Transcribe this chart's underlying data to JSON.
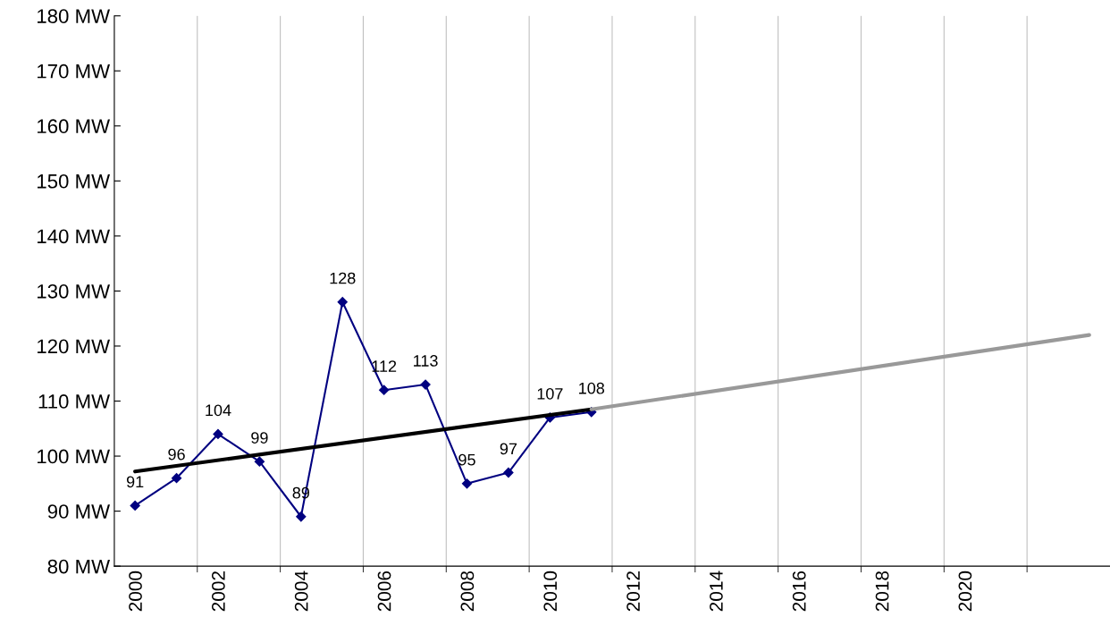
{
  "chart_data": {
    "type": "line",
    "xlim": [
      1999.5,
      2023.5
    ],
    "xticks": [
      2000,
      2002,
      2004,
      2006,
      2008,
      2010,
      2012,
      2014,
      2016,
      2018,
      2020,
      {
        "value": 2001.5,
        "label": null
      },
      {
        "value": 2003.5,
        "label": null
      },
      {
        "value": 2005.5,
        "label": null
      },
      {
        "value": 2007.5,
        "label": null
      },
      {
        "value": 2009.5,
        "label": null
      },
      {
        "value": 2011.5,
        "label": null
      },
      {
        "value": 2013.5,
        "label": null
      },
      {
        "value": 2015.5,
        "label": null
      },
      {
        "value": 2017.5,
        "label": null
      },
      {
        "value": 2019.5,
        "label": null
      },
      {
        "value": 2021.5,
        "label": null
      }
    ],
    "ylim": [
      80,
      180
    ],
    "yticks": [
      {
        "value": 80,
        "label": "80 MW"
      },
      {
        "value": 90,
        "label": "90 MW"
      },
      {
        "value": 100,
        "label": "100 MW"
      },
      {
        "value": 110,
        "label": "110 MW"
      },
      {
        "value": 120,
        "label": "120 MW"
      },
      {
        "value": 130,
        "label": "130 MW"
      },
      {
        "value": 140,
        "label": "140 MW"
      },
      {
        "value": 150,
        "label": "150 MW"
      },
      {
        "value": 160,
        "label": "160 MW"
      },
      {
        "value": 170,
        "label": "170 MW"
      },
      {
        "value": 180,
        "label": "180 MW"
      }
    ],
    "grid": "x",
    "series": [
      {
        "color": "#000080",
        "marker": "diamond",
        "x": [
          2000,
          2001,
          2002,
          2003,
          2004,
          2005,
          2006,
          2007,
          2008,
          2009,
          2010,
          2011
        ],
        "values": [
          91,
          96,
          104,
          99,
          89,
          128,
          112,
          113,
          95,
          97,
          107,
          108
        ],
        "value_labels": [
          "91",
          "96",
          "104",
          "99",
          "89",
          "128",
          "112",
          "113",
          "95",
          "97",
          "107",
          "108"
        ]
      },
      {
        "color": "#000000",
        "marker": "none",
        "x": [
          2000,
          2011
        ],
        "values": [
          97.2,
          108.5
        ]
      },
      {
        "color": "#999999",
        "marker": "none",
        "x": [
          2011,
          2023
        ],
        "values": [
          108.5,
          122.0
        ]
      }
    ]
  }
}
